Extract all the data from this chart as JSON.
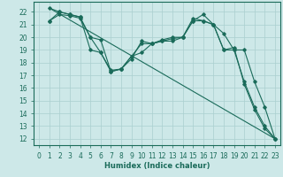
{
  "xlabel": "Humidex (Indice chaleur)",
  "bg_color": "#cde8e8",
  "grid_color": "#aacfcf",
  "line_color": "#1a6b5a",
  "xlim": [
    -0.5,
    23.5
  ],
  "ylim": [
    11.5,
    22.8
  ],
  "yticks": [
    12,
    13,
    14,
    15,
    16,
    17,
    18,
    19,
    20,
    21,
    22
  ],
  "xticks": [
    0,
    1,
    2,
    3,
    4,
    5,
    6,
    7,
    8,
    9,
    10,
    11,
    12,
    13,
    14,
    15,
    16,
    17,
    18,
    19,
    20,
    21,
    22,
    23
  ],
  "series": [
    {
      "x": [
        1,
        23
      ],
      "y": [
        22.3,
        12.0
      ],
      "marker": false
    },
    {
      "x": [
        1,
        2,
        3,
        4,
        5,
        6,
        7,
        8,
        9,
        10,
        11,
        12,
        13,
        14,
        15,
        16,
        17,
        18,
        19,
        20,
        21,
        22,
        23
      ],
      "y": [
        21.3,
        21.8,
        21.7,
        21.5,
        20.0,
        18.8,
        17.4,
        17.5,
        18.5,
        19.5,
        19.5,
        19.8,
        20.0,
        20.0,
        21.3,
        21.3,
        21.0,
        19.0,
        19.0,
        16.5,
        14.5,
        13.0,
        12.0
      ],
      "marker": true
    },
    {
      "x": [
        1,
        2,
        3,
        4,
        5,
        6,
        7,
        8,
        9,
        10,
        11,
        12,
        13,
        14,
        15,
        16,
        17,
        18,
        19,
        20,
        21,
        22,
        23
      ],
      "y": [
        21.3,
        22.0,
        21.8,
        21.6,
        19.0,
        18.8,
        17.3,
        17.5,
        18.3,
        19.7,
        19.5,
        19.7,
        19.9,
        20.0,
        21.5,
        21.3,
        21.0,
        19.0,
        19.2,
        16.3,
        14.3,
        12.8,
        12.0
      ],
      "marker": true
    },
    {
      "x": [
        1,
        2,
        3,
        4,
        5,
        6,
        7,
        8,
        9,
        10,
        11,
        12,
        13,
        14,
        15,
        16,
        17,
        18,
        19,
        20,
        21,
        22,
        23
      ],
      "y": [
        22.3,
        22.0,
        21.8,
        21.6,
        20.0,
        19.8,
        17.3,
        17.5,
        18.5,
        18.8,
        19.5,
        19.7,
        19.7,
        20.0,
        21.3,
        21.8,
        21.0,
        20.3,
        19.0,
        19.0,
        16.5,
        14.5,
        12.0
      ],
      "marker": true
    }
  ]
}
